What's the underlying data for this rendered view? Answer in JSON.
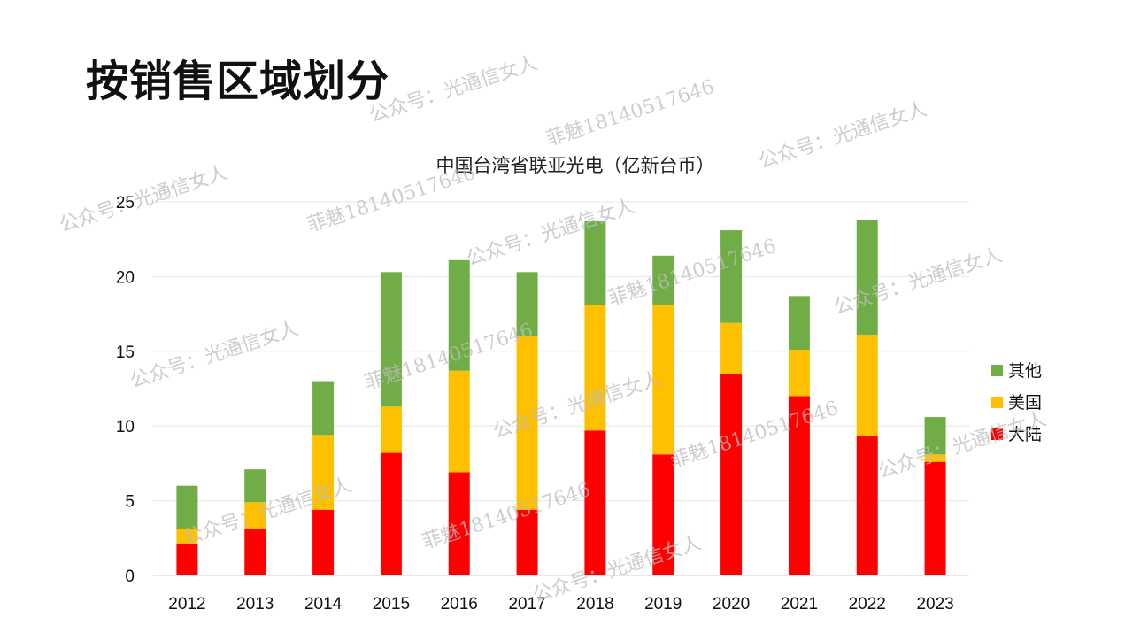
{
  "page": {
    "title": "按销售区域划分"
  },
  "watermarks": [
    "公众号：光通信女人",
    "菲魅18140517646"
  ],
  "colors": {
    "其他": "#70ad47",
    "美国": "#ffc000",
    "大陆": "#ff0000"
  },
  "chart_data": {
    "type": "bar",
    "stacked": true,
    "title": "中国台湾省联亚光电（亿新台币）",
    "xlabel": "",
    "ylabel": "",
    "ylim": [
      0,
      25
    ],
    "yticks": [
      0,
      5,
      10,
      15,
      20,
      25
    ],
    "grid": true,
    "legend_position": "right",
    "categories": [
      "2012",
      "2013",
      "2014",
      "2015",
      "2016",
      "2017",
      "2018",
      "2019",
      "2020",
      "2021",
      "2022",
      "2023"
    ],
    "series": [
      {
        "name": "大陆",
        "values": [
          2.1,
          3.1,
          4.4,
          8.2,
          6.9,
          4.4,
          9.7,
          8.1,
          13.5,
          12.0,
          9.3,
          7.6
        ]
      },
      {
        "name": "美国",
        "values": [
          1.0,
          1.8,
          5.0,
          3.1,
          6.8,
          11.6,
          8.4,
          10.0,
          3.4,
          3.1,
          6.8,
          0.5
        ]
      },
      {
        "name": "其他",
        "values": [
          2.9,
          2.2,
          3.6,
          9.0,
          7.4,
          4.3,
          5.6,
          3.3,
          6.2,
          3.6,
          7.7,
          2.5
        ]
      }
    ],
    "legend_order": [
      "其他",
      "美国",
      "大陆"
    ]
  }
}
